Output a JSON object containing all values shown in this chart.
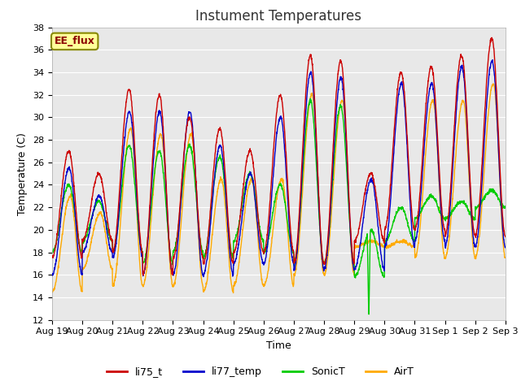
{
  "title": "Instument Temperatures",
  "xlabel": "Time",
  "ylabel": "Temperature (C)",
  "ylim": [
    12,
    38
  ],
  "yticks": [
    12,
    14,
    16,
    18,
    20,
    22,
    24,
    26,
    28,
    30,
    32,
    34,
    36,
    38
  ],
  "xtick_labels": [
    "Aug 19",
    "Aug 20",
    "Aug 21",
    "Aug 22",
    "Aug 23",
    "Aug 24",
    "Aug 25",
    "Aug 26",
    "Aug 27",
    "Aug 28",
    "Aug 29",
    "Aug 30",
    "Aug 31",
    "Sep 1",
    "Sep 2",
    "Sep 3"
  ],
  "colors": {
    "li75_t": "#cc0000",
    "li77_temp": "#0000cc",
    "SonicT": "#00cc00",
    "AirT": "#ffaa00"
  },
  "legend_labels": [
    "li75_t",
    "li77_temp",
    "SonicT",
    "AirT"
  ],
  "annotation_text": "EE_flux",
  "annotation_bg": "#ffff99",
  "annotation_border": "#888800",
  "plot_bg": "#e8e8e8",
  "fig_bg": "#ffffff",
  "title_fontsize": 12,
  "axis_label_fontsize": 9,
  "tick_fontsize": 8,
  "line_width": 1.0,
  "num_days": 15,
  "pts_per_day": 144
}
